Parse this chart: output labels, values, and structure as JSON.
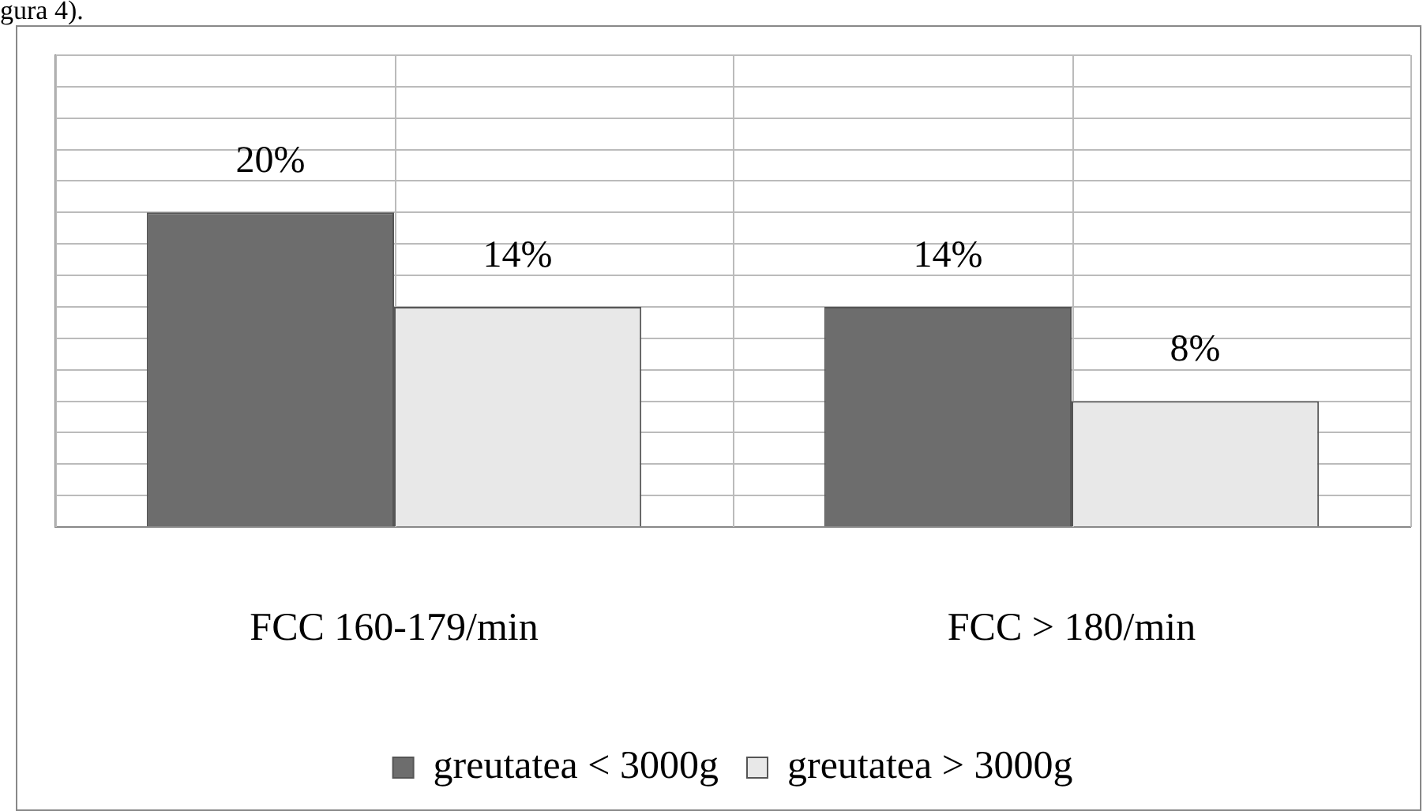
{
  "chart_data": {
    "type": "bar",
    "annotations": [
      "gura 4)."
    ],
    "categories": [
      "FCC 160-179/min",
      "FCC > 180/min"
    ],
    "series": [
      {
        "name": "greutatea < 3000g",
        "color": "#6d6d6d",
        "values": [
          20,
          14
        ],
        "value_labels": [
          "20%",
          "14%"
        ]
      },
      {
        "name": "greutatea > 3000g",
        "color": "#e8e8e8",
        "values": [
          14,
          8
        ],
        "value_labels": [
          "14%",
          "8%"
        ]
      }
    ],
    "ylim": [
      0,
      30
    ],
    "yticks": [
      {
        "value": 0,
        "label": null
      },
      {
        "value": 2,
        "label": null
      },
      {
        "value": 4,
        "label": null
      },
      {
        "value": 6,
        "label": null
      },
      {
        "value": 8,
        "label": null
      },
      {
        "value": 10,
        "label": null
      },
      {
        "value": 12,
        "label": null
      },
      {
        "value": 14,
        "label": null
      },
      {
        "value": 16,
        "label": null
      },
      {
        "value": 18,
        "label": null
      },
      {
        "value": 20,
        "label": null
      },
      {
        "value": 22,
        "label": null
      },
      {
        "value": 24,
        "label": null
      },
      {
        "value": 26,
        "label": null
      },
      {
        "value": 28,
        "label": null
      },
      {
        "value": 30,
        "label": null
      }
    ],
    "tick_labels": "x",
    "grid": true,
    "legend": "bottom"
  }
}
